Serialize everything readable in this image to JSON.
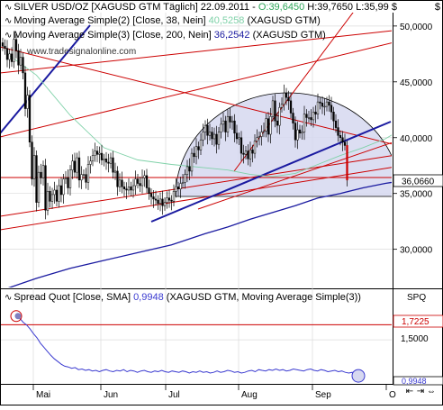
{
  "header": {
    "title_prefix": "SILVER USD/OZ [XAGUSD GTM  Täglich] 22.09.2011 - ",
    "ohlc_open": "O:39,6450",
    "ohlc_rest": " H:39,7650 L:35,99 $",
    "ma1_label": "Moving Average Simple(2) [Close, 38, Nein] ",
    "ma1_value": "40,5258",
    "ma1_suffix": " (XAGUSD GTM)",
    "ma2_label": "Moving Average Simple(3) [Close, 200, Nein] ",
    "ma2_value": "36,2542",
    "ma2_suffix": " (XAGUSD GTM)",
    "close_icon": "close-icon",
    "corner_glyph": "$"
  },
  "watermark": "www.tradesignalonline.com",
  "lower": {
    "label": "Spread Quot [Close, SMA] ",
    "value": "0,9948",
    "suffix": " (XAGUSD GTM, Moving Average Simple(3))",
    "tag": "SPQ",
    "level_label": "1,7225",
    "end_label": "0,9948"
  },
  "price_marker": "36,0660",
  "nav": {
    "icons": [
      "zoom-out-icon",
      "zoom-in-icon",
      "scroll-icon"
    ],
    "glyphs": [
      "⇤",
      "⇥",
      "⇔"
    ]
  },
  "colors": {
    "candle": "#000000",
    "ma38": "#7fd1a8",
    "ma200": "#1a1aa0",
    "trendline": "#cc0000",
    "support": "#1a1aa0",
    "arc_fill": "#d6d8f0",
    "spread": "#3a3ad0"
  },
  "chart_data": [
    {
      "type": "candlestick",
      "title": "SILVER USD/OZ [XAGUSD GTM Täglich]",
      "x_ticks": [
        "Mai",
        "Jun",
        "Jul",
        "Aug",
        "Sep",
        "O"
      ],
      "y_ticks": [
        "50,0000",
        "45,0000",
        "40,0000",
        "35,0000",
        "30,0000"
      ],
      "ylim": [
        26.5,
        51.2
      ],
      "last_value": 36.066,
      "series": [
        {
          "name": "Moving Average Simple(2)",
          "last": 40.5258,
          "values": [
            [
              2,
              47.5
            ],
            [
              15,
              45.6
            ],
            [
              30,
              42.0
            ],
            [
              45,
              39.1
            ],
            [
              60,
              38.0
            ],
            [
              75,
              37.6
            ],
            [
              90,
              37.3
            ],
            [
              100,
              37.1
            ],
            [
              110,
              36.7
            ],
            [
              120,
              36.5
            ],
            [
              130,
              36.8
            ],
            [
              140,
              37.6
            ],
            [
              150,
              38.4
            ],
            [
              160,
              39.1
            ],
            [
              170,
              39.9
            ],
            [
              175,
              40.5
            ],
            [
              180,
              40.8
            ],
            [
              186,
              40.5
            ]
          ]
        },
        {
          "name": "Moving Average Simple(3)",
          "last": 36.2542,
          "values": [
            [
              2,
              26.5
            ],
            [
              15,
              27.4
            ],
            [
              30,
              28.3
            ],
            [
              45,
              29.0
            ],
            [
              60,
              29.7
            ],
            [
              75,
              30.4
            ],
            [
              90,
              31.4
            ],
            [
              100,
              32.0
            ],
            [
              110,
              32.7
            ],
            [
              120,
              33.3
            ],
            [
              130,
              33.9
            ],
            [
              140,
              34.6
            ],
            [
              150,
              35.0
            ],
            [
              160,
              35.5
            ],
            [
              170,
              35.9
            ],
            [
              180,
              36.2
            ],
            [
              186,
              36.25
            ]
          ]
        }
      ],
      "closes": [
        48.2,
        48.0,
        47.0,
        47.5,
        46.8,
        48.8,
        47.8,
        46.5,
        47.2,
        45.8,
        42.6,
        43.8,
        39.6,
        36.3,
        38.4,
        34.2,
        36.9,
        36.4,
        37.5,
        33.5,
        35.2,
        34.3,
        34.9,
        35.3,
        34.3,
        35.7,
        34.9,
        36.3,
        36.4,
        35.5,
        37.1,
        37.9,
        36.9,
        38.2,
        36.2,
        36.7,
        36.7,
        36.0,
        37.6,
        37.9,
        38.4,
        38.8,
        38.5,
        38.6,
        38.0,
        38.1,
        37.8,
        37.7,
        38.2,
        36.9,
        37.0,
        35.6,
        36.2,
        35.6,
        35.4,
        35.3,
        35.6,
        35.3,
        35.7,
        36.3,
        35.9,
        35.7,
        36.4,
        36.6,
        35.5,
        35.0,
        34.7,
        34.5,
        34.4,
        34.1,
        34.5,
        33.9,
        34.2,
        34.6,
        34.4,
        34.3,
        35.2,
        35.6,
        35.4,
        35.9,
        36.0,
        36.7,
        37.4,
        37.0,
        38.6,
        38.3,
        39.2,
        38.9,
        39.8,
        40.5,
        41.1,
        40.2,
        40.5,
        39.9,
        40.3,
        39.4,
        40.5,
        41.2,
        41.5,
        40.5,
        41.9,
        41.4,
        41.5,
        40.4,
        39.9,
        40.0,
        38.6,
        38.5,
        38.8,
        38.1,
        38.9,
        38.6,
        39.7,
        40.0,
        40.1,
        40.5,
        40.6,
        41.7,
        40.3,
        41.9,
        43.3,
        41.5,
        41.1,
        42.7,
        43.0,
        44.0,
        43.6,
        43.3,
        42.2,
        41.3,
        39.8,
        40.7,
        40.4,
        40.5,
        42.1,
        41.8,
        41.8,
        41.6,
        42.3,
        42.1,
        43.2,
        43.1,
        42.8,
        42.8,
        43.2,
        42.9,
        42.3,
        41.5,
        40.9,
        40.2,
        40.0,
        39.6,
        39.3,
        36.2
      ]
    },
    {
      "type": "line",
      "title": "Spread Quot [Close, SMA]",
      "x_ticks": [
        "Mai",
        "Jun",
        "Jul",
        "Aug",
        "Sep",
        "O"
      ],
      "y_ticks": [
        "1,5000"
      ],
      "ylim": [
        0.85,
        2.02
      ],
      "level": 1.7225,
      "last_value": 0.9948,
      "values": [
        1.85,
        1.82,
        1.76,
        1.72,
        1.66,
        1.59,
        1.53,
        1.45,
        1.39,
        1.33,
        1.27,
        1.22,
        1.18,
        1.14,
        1.11,
        1.1,
        1.08,
        1.09,
        1.06,
        1.07,
        1.05,
        1.06,
        1.04,
        1.05,
        1.03,
        1.05,
        1.06,
        1.04,
        1.03,
        1.05,
        1.04,
        1.06,
        1.03,
        1.05,
        1.04,
        1.02,
        1.04,
        1.05,
        1.03,
        1.02,
        1.04,
        1.03,
        1.05,
        1.03,
        1.02,
        1.04,
        1.03,
        1.02,
        1.04,
        1.03,
        1.01,
        1.03,
        1.02,
        1.04,
        1.02,
        1.03,
        1.01,
        1.02,
        1.04,
        1.02,
        1.03,
        1.05,
        1.04,
        1.02,
        1.03,
        1.01,
        1.02,
        1.04,
        1.05,
        1.03,
        1.06,
        1.05,
        1.04,
        1.06,
        1.05,
        1.07,
        1.05,
        1.06,
        1.04,
        1.05,
        1.07,
        1.06,
        1.05,
        1.04,
        1.06,
        1.07,
        1.05,
        1.04,
        1.06,
        1.05,
        1.03,
        1.04,
        1.05,
        1.03,
        1.04,
        1.02,
        1.01,
        1.02,
        0.99
      ]
    }
  ]
}
